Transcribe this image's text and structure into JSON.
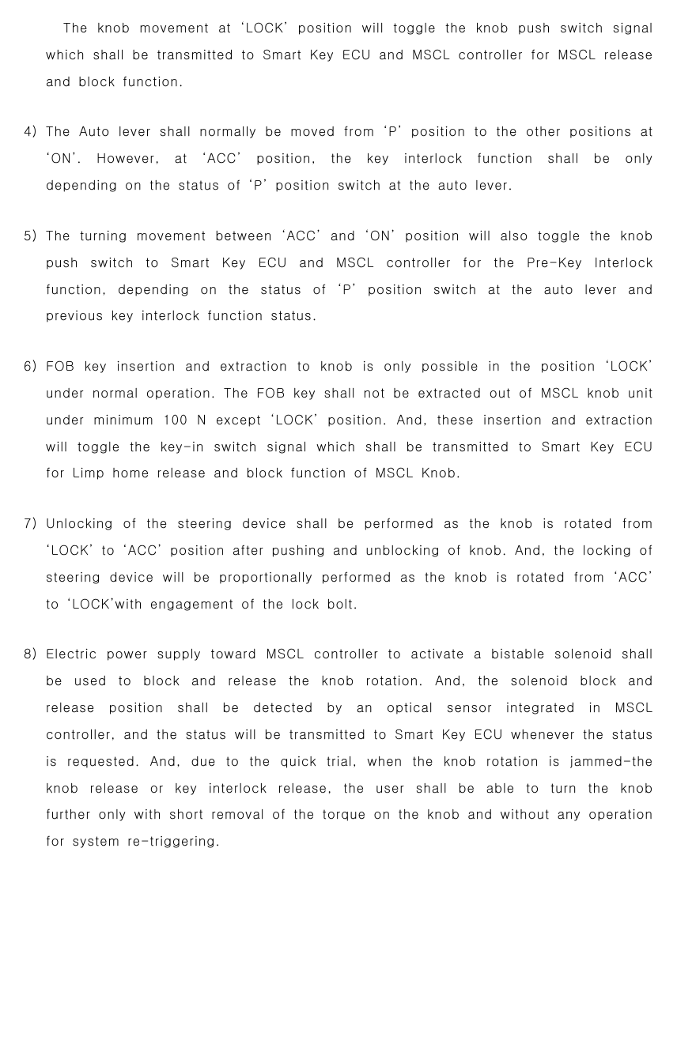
{
  "colors": {
    "text": "#000000",
    "background": "#ffffff"
  },
  "typography": {
    "fontsize_pt": 12,
    "line_height": 2.05,
    "letter_spacing_em": 0.06,
    "word_spacing_em": 0.18,
    "font_family": "monospace-like sans"
  },
  "paragraphs": {
    "p0": {
      "text": "The knob movement at ‘LOCK’ position will toggle the knob push switch signal which shall be transmitted to Smart Key ECU and MSCL controller for MSCL release and block function."
    },
    "p4": {
      "num": "4)",
      "text": "The Auto lever shall normally be moved from ‘P’ position to the other positions at ‘ON’. However, at ‘ACC’ position, the key interlock function shall be only depending on the status of ‘P’ position switch at the auto lever."
    },
    "p5": {
      "num": "5)",
      "text": "The turning movement between ‘ACC’ and ‘ON’ position will also toggle the knob push switch to Smart Key ECU and MSCL controller for the Pre-Key Interlock function, depending on the status of ‘P’ position switch at the auto lever and previous key interlock function status."
    },
    "p6": {
      "num": "6)",
      "text": "FOB key insertion and extraction to knob is only possible in the position ‘LOCK’ under normal operation. The FOB key shall not be extracted out of MSCL knob unit under minimum 100 N except ‘LOCK’ position. And, these insertion and extraction will toggle the key-in switch signal which shall be transmitted to Smart Key ECU for Limp home release and block function of MSCL Knob."
    },
    "p7": {
      "num": "7)",
      "text": "Unlocking of the steering device shall be performed as the knob is rotated from ‘LOCK’ to ‘ACC’ position after pushing and unblocking of knob. And, the locking of steering device will be proportionally performed as the knob is rotated from ‘ACC’ to ‘LOCK’with engagement of the lock bolt."
    },
    "p8": {
      "num": "8)",
      "text": "Electric power supply toward MSCL controller to activate a bistable solenoid shall be used to block and release the knob rotation. And, the solenoid block and release position shall be detected by an optical sensor integrated in MSCL controller, and the status will be transmitted to Smart Key ECU whenever the status is requested. And, due to the quick trial, when the knob rotation is jammed-the knob release or key interlock release, the user shall be able to turn the knob further only with short removal of the torque on the knob and without any operation for system re-triggering."
    }
  }
}
